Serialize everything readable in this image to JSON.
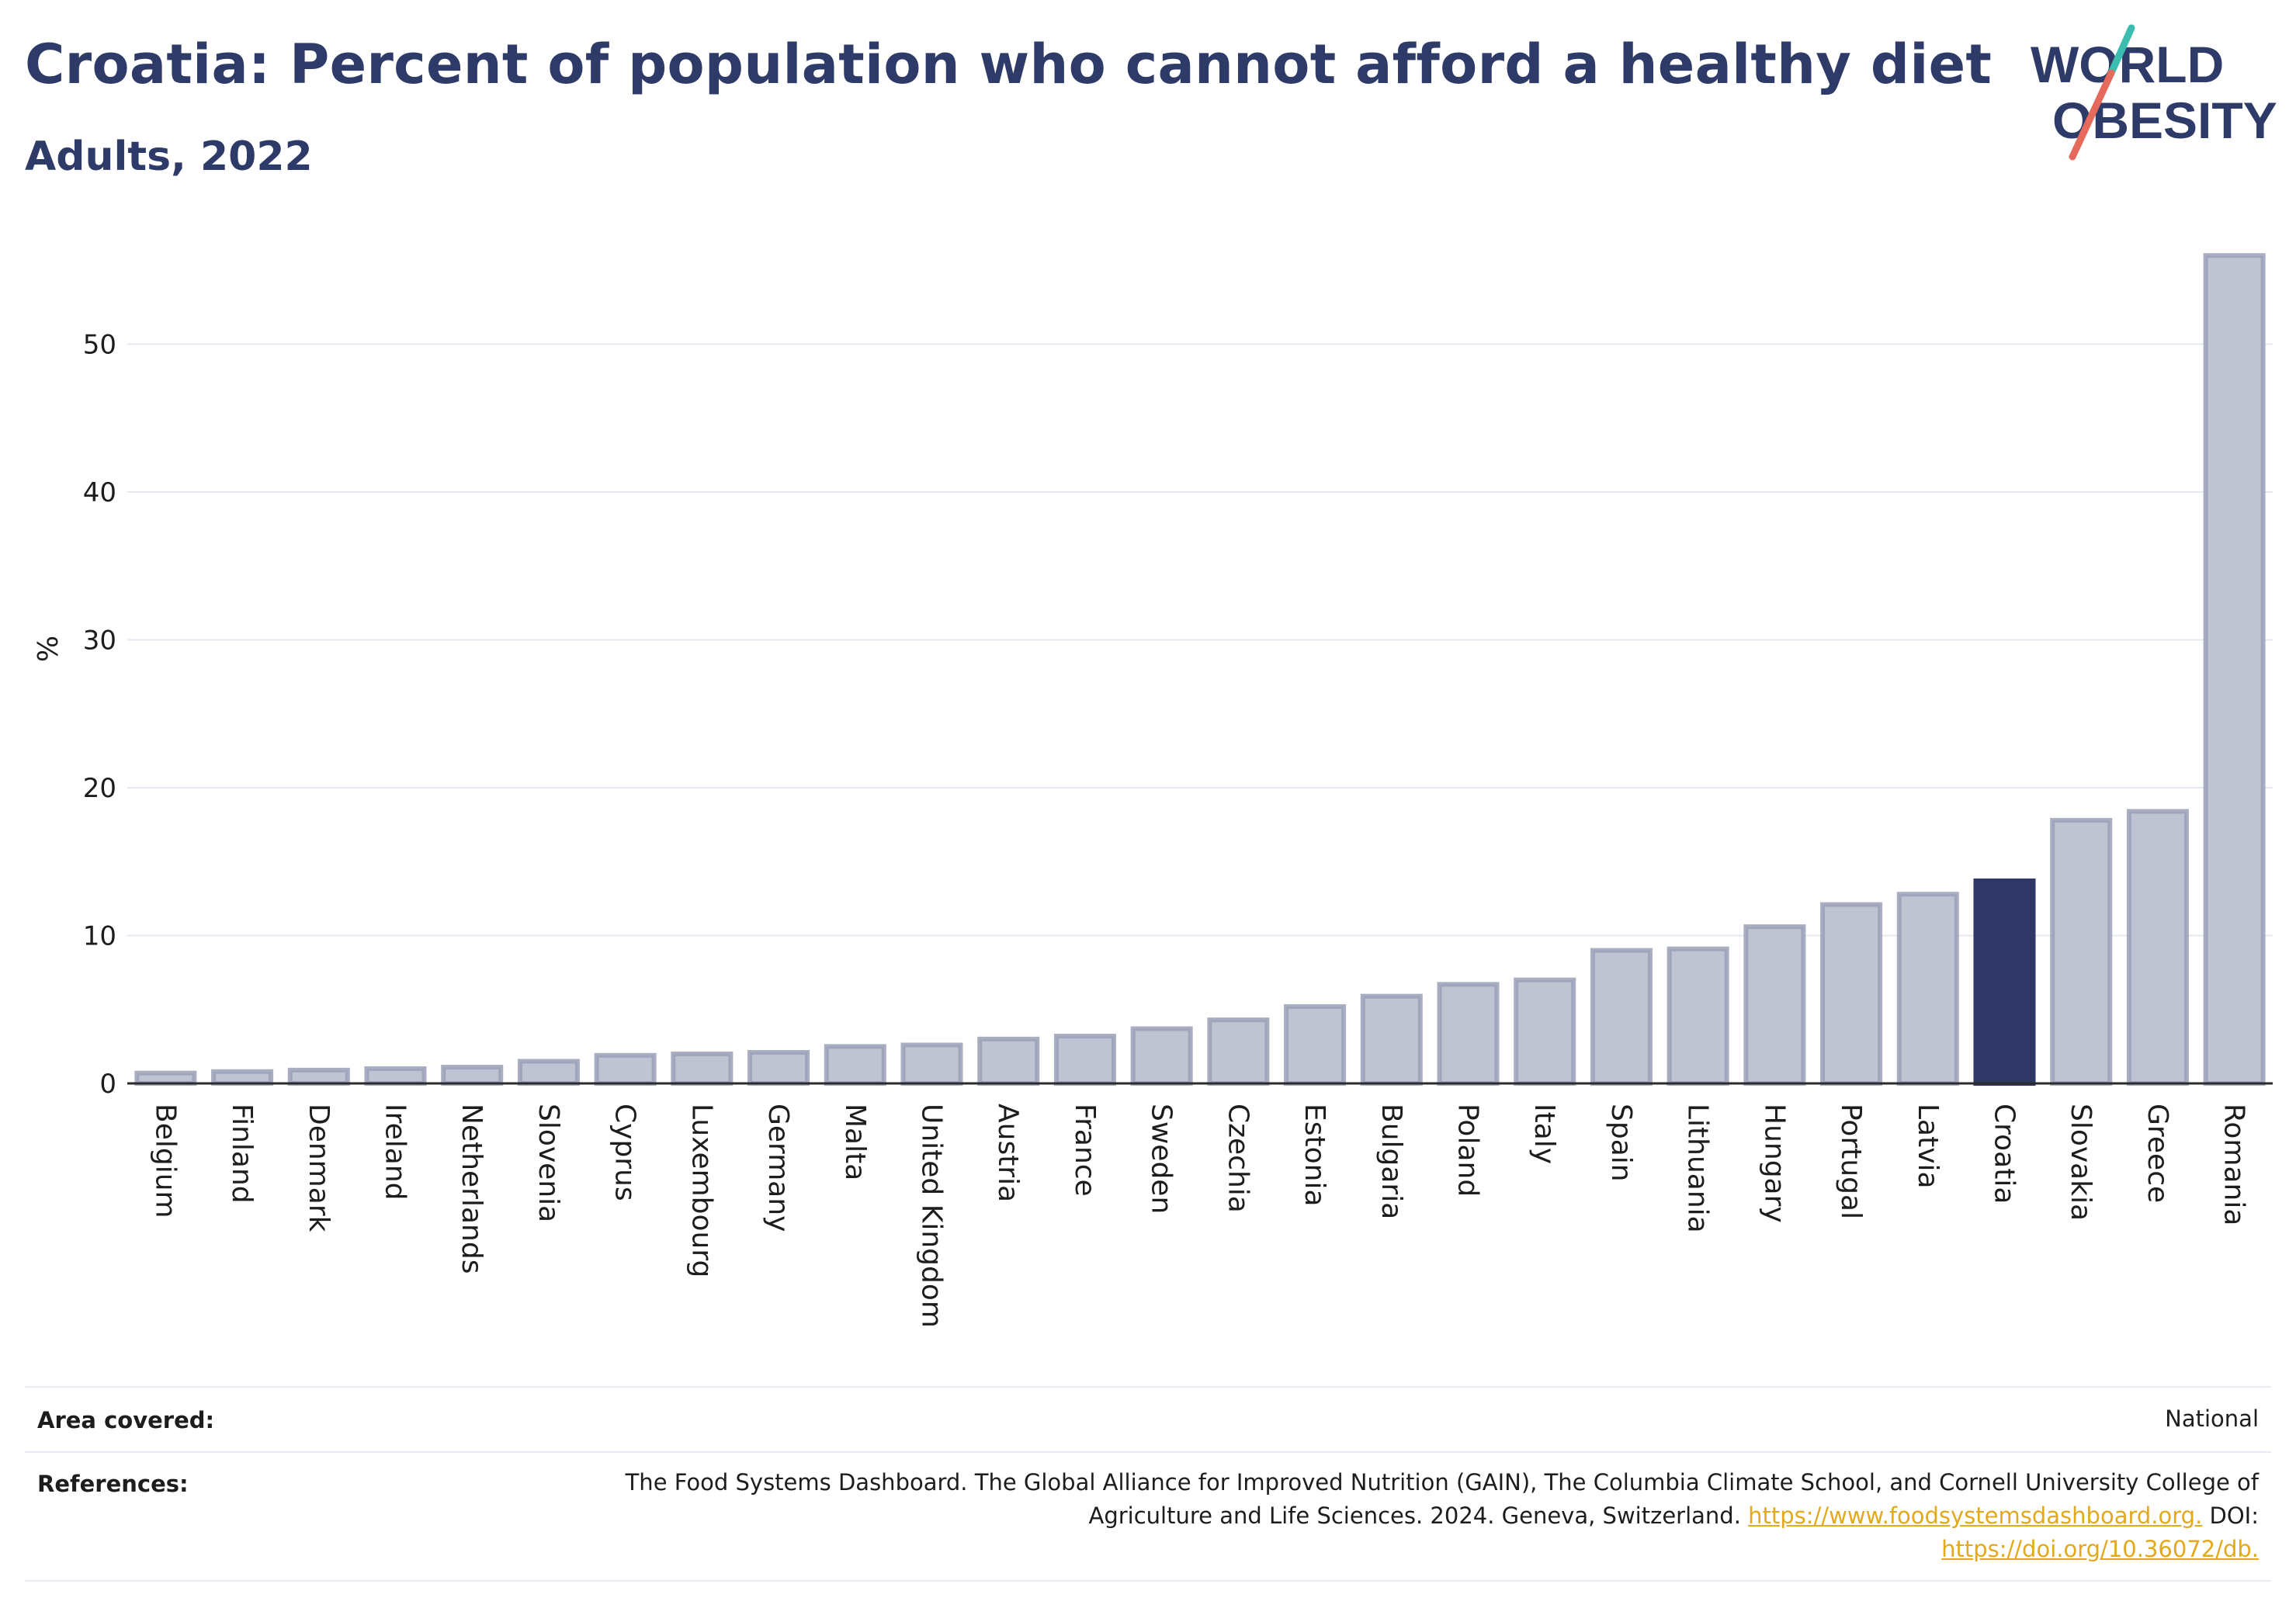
{
  "header": {
    "title": "Croatia: Percent of population who cannot afford a healthy diet",
    "subtitle": "Adults, 2022",
    "logo_line1": "WORLD",
    "logo_line2": "OBESITY"
  },
  "colors": {
    "bar": "#bfc3d2",
    "bar_border": "#9aa0b8",
    "highlight": "#2e3766",
    "title": "#2e3a67",
    "link": "#e3a91c",
    "logo_teal": "#3dbdb0",
    "logo_coral": "#e66a5c"
  },
  "chart_data": {
    "type": "bar",
    "title": "Croatia: Percent of population who cannot afford a healthy diet",
    "subtitle": "Adults, 2022",
    "ylabel": "%",
    "xlabel": "",
    "ylim": [
      0,
      56
    ],
    "yticks": [
      0,
      10,
      20,
      30,
      40,
      50
    ],
    "grid": true,
    "highlight": "Croatia",
    "categories": [
      "Belgium",
      "Finland",
      "Denmark",
      "Ireland",
      "Netherlands",
      "Slovenia",
      "Cyprus",
      "Luxembourg",
      "Germany",
      "Malta",
      "United Kingdom",
      "Austria",
      "France",
      "Sweden",
      "Czechia",
      "Estonia",
      "Bulgaria",
      "Poland",
      "Italy",
      "Spain",
      "Lithuania",
      "Hungary",
      "Portugal",
      "Latvia",
      "Croatia",
      "Slovakia",
      "Greece",
      "Romania"
    ],
    "values": [
      0.7,
      0.8,
      0.9,
      1.0,
      1.1,
      1.5,
      1.9,
      2.0,
      2.1,
      2.5,
      2.6,
      3.0,
      3.2,
      3.7,
      4.3,
      5.2,
      5.9,
      6.7,
      7.0,
      9.0,
      9.1,
      10.6,
      12.1,
      12.8,
      13.7,
      17.8,
      18.4,
      56.0
    ]
  },
  "footer": {
    "area_label": "Area covered:",
    "area_value": "National",
    "references_label": "References:",
    "references_text": "The Food Systems Dashboard. The Global Alliance for Improved Nutrition (GAIN), The Columbia Climate School, and Cornell University College of Agriculture and Life Sciences. 2024. Geneva, Switzerland.",
    "references_link1": "https://www.foodsystemsdashboard.org.",
    "references_doi_label": "DOI:",
    "references_link2": "https://doi.org/10.36072/db."
  }
}
